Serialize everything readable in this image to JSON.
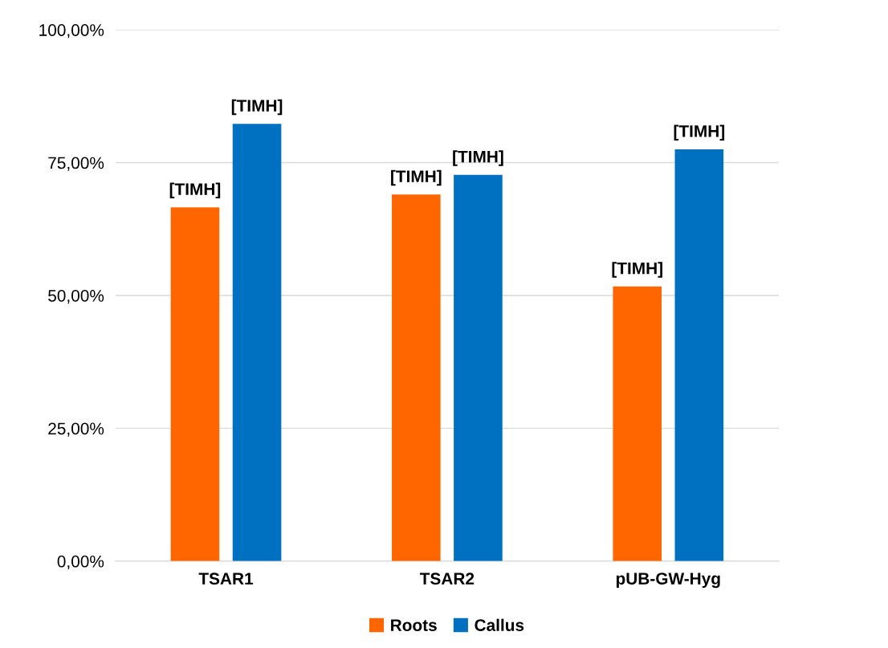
{
  "chart_data": {
    "type": "bar",
    "categories": [
      "TSAR1",
      "TSAR2",
      "pUB-GW-Hyg"
    ],
    "series": [
      {
        "name": "Roots",
        "color": "#ff6600",
        "values": [
          66.6,
          69.0,
          51.7
        ],
        "value_labels": [
          "[TIMH]",
          "[TIMH]",
          "[TIMH]"
        ]
      },
      {
        "name": "Callus",
        "color": "#0070c0",
        "values": [
          82.3,
          72.7,
          77.5
        ],
        "value_labels": [
          "[TIMH]",
          "[TIMH]",
          "[TIMH]"
        ]
      }
    ],
    "ylim": [
      0,
      100
    ],
    "yticks": [
      {
        "value": 0,
        "label": "0,00%"
      },
      {
        "value": 25,
        "label": "25,00%"
      },
      {
        "value": 50,
        "label": "50,00%"
      },
      {
        "value": 75,
        "label": "75,00%"
      },
      {
        "value": 100,
        "label": "100,00%"
      }
    ],
    "grid": "y",
    "legend": "bottom"
  }
}
